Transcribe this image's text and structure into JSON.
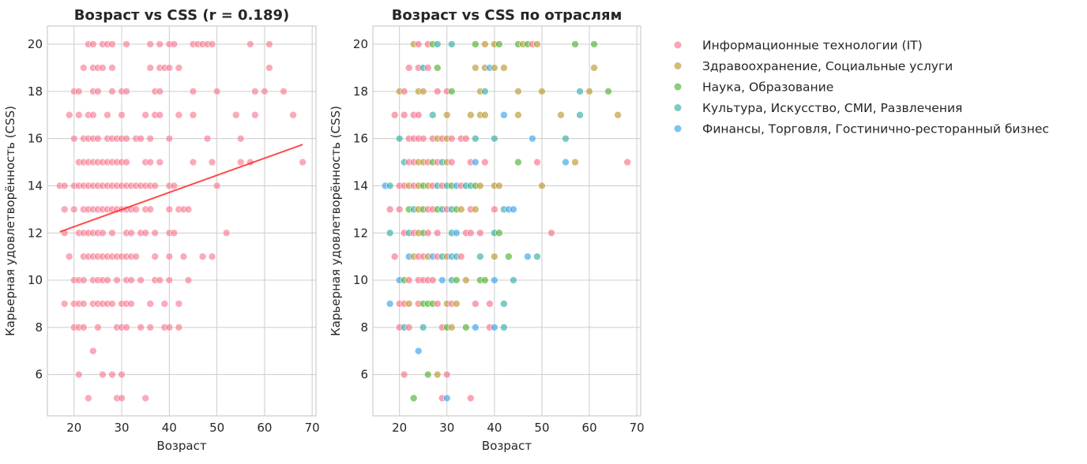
{
  "chart_data": [
    {
      "type": "scatter",
      "title": "Возраст vs CSS (r = 0.189)",
      "xlabel": "Возраст",
      "ylabel": "Карьерная удовлетворённость (CSS)",
      "xlim": [
        14.4,
        70.8
      ],
      "ylim": [
        4.25,
        20.77
      ],
      "xticks": [
        "20",
        "30",
        "40",
        "50",
        "60",
        "70"
      ],
      "yticks": [
        "6",
        "8",
        "10",
        "12",
        "14",
        "16",
        "18",
        "20"
      ],
      "grid": true,
      "point_color": "#f77189",
      "trendline": {
        "x": [
          17,
          68
        ],
        "y": [
          12.05,
          15.75
        ],
        "color": "#ff2a2a"
      }
    },
    {
      "type": "scatter",
      "title": "Возраст vs CSS по отраслям",
      "xlabel": "Возраст",
      "ylabel": "Карьерная удовлетворённость (CSS)",
      "xlim": [
        14.4,
        70.8
      ],
      "ylim": [
        4.25,
        20.77
      ],
      "xticks": [
        "20",
        "30",
        "40",
        "50",
        "60",
        "70"
      ],
      "yticks": [
        "6",
        "8",
        "10",
        "12",
        "14",
        "16",
        "18",
        "20"
      ],
      "grid": true,
      "legend_position": "outside-right",
      "series": [
        {
          "name": "Информационные технологии (IT)",
          "color": "#f77189"
        },
        {
          "name": "Здравоохранение, Социальные услуги",
          "color": "#bb9832"
        },
        {
          "name": "Наука, Образование",
          "color": "#50b131"
        },
        {
          "name": "Культура, Искусство, СМИ, Развлечения",
          "color": "#36ada4"
        },
        {
          "name": "Финансы, Торговля, Гостинично-ресторанный бизнес",
          "color": "#3ba3ec"
        }
      ]
    }
  ],
  "points_age_css_series": [
    [
      23,
      20,
      1
    ],
    [
      24,
      20,
      0
    ],
    [
      26,
      20,
      0
    ],
    [
      27,
      20,
      2
    ],
    [
      28,
      20,
      3
    ],
    [
      31,
      20,
      3
    ],
    [
      36,
      20,
      2
    ],
    [
      38,
      20,
      1
    ],
    [
      40,
      20,
      1
    ],
    [
      41,
      20,
      2
    ],
    [
      45,
      20,
      2
    ],
    [
      46,
      20,
      1
    ],
    [
      47,
      20,
      2
    ],
    [
      48,
      20,
      0
    ],
    [
      49,
      20,
      1
    ],
    [
      57,
      20,
      2
    ],
    [
      61,
      20,
      2
    ],
    [
      22,
      19,
      0
    ],
    [
      24,
      19,
      0
    ],
    [
      25,
      19,
      3
    ],
    [
      26,
      19,
      0
    ],
    [
      28,
      19,
      2
    ],
    [
      36,
      19,
      1
    ],
    [
      38,
      19,
      1
    ],
    [
      39,
      19,
      4
    ],
    [
      40,
      19,
      1
    ],
    [
      42,
      19,
      1
    ],
    [
      61,
      19,
      1
    ],
    [
      20,
      18,
      1
    ],
    [
      21,
      18,
      0
    ],
    [
      24,
      18,
      1
    ],
    [
      25,
      18,
      1
    ],
    [
      28,
      18,
      0
    ],
    [
      30,
      18,
      0
    ],
    [
      31,
      18,
      2
    ],
    [
      37,
      18,
      1
    ],
    [
      38,
      18,
      3
    ],
    [
      45,
      18,
      1
    ],
    [
      50,
      18,
      1
    ],
    [
      58,
      18,
      3
    ],
    [
      60,
      18,
      1
    ],
    [
      64,
      18,
      2
    ],
    [
      19,
      17,
      0
    ],
    [
      21,
      17,
      0
    ],
    [
      23,
      17,
      0
    ],
    [
      24,
      17,
      0
    ],
    [
      27,
      17,
      3
    ],
    [
      30,
      17,
      1
    ],
    [
      35,
      17,
      1
    ],
    [
      37,
      17,
      1
    ],
    [
      38,
      17,
      1
    ],
    [
      42,
      17,
      4
    ],
    [
      45,
      17,
      1
    ],
    [
      54,
      17,
      1
    ],
    [
      58,
      17,
      3
    ],
    [
      66,
      17,
      1
    ],
    [
      20,
      16,
      3
    ],
    [
      22,
      16,
      0
    ],
    [
      23,
      16,
      0
    ],
    [
      24,
      16,
      0
    ],
    [
      25,
      16,
      0
    ],
    [
      27,
      16,
      0
    ],
    [
      28,
      16,
      1
    ],
    [
      29,
      16,
      0
    ],
    [
      30,
      16,
      1
    ],
    [
      31,
      16,
      0
    ],
    [
      33,
      16,
      0
    ],
    [
      34,
      16,
      0
    ],
    [
      36,
      16,
      3
    ],
    [
      40,
      16,
      3
    ],
    [
      48,
      16,
      4
    ],
    [
      55,
      16,
      3
    ],
    [
      21,
      15,
      3
    ],
    [
      22,
      15,
      0
    ],
    [
      23,
      15,
      0
    ],
    [
      24,
      15,
      1
    ],
    [
      25,
      15,
      1
    ],
    [
      26,
      15,
      0
    ],
    [
      27,
      15,
      2
    ],
    [
      28,
      15,
      0
    ],
    [
      29,
      15,
      3
    ],
    [
      30,
      15,
      1
    ],
    [
      31,
      15,
      0
    ],
    [
      35,
      15,
      0
    ],
    [
      36,
      15,
      4
    ],
    [
      38,
      15,
      0
    ],
    [
      45,
      15,
      2
    ],
    [
      49,
      15,
      0
    ],
    [
      55,
      15,
      4
    ],
    [
      57,
      15,
      1
    ],
    [
      68,
      15,
      0
    ],
    [
      17,
      14,
      4
    ],
    [
      18,
      14,
      3
    ],
    [
      20,
      14,
      0
    ],
    [
      21,
      14,
      0
    ],
    [
      22,
      14,
      1
    ],
    [
      23,
      14,
      0
    ],
    [
      24,
      14,
      1
    ],
    [
      25,
      14,
      2
    ],
    [
      26,
      14,
      1
    ],
    [
      27,
      14,
      0
    ],
    [
      28,
      14,
      3
    ],
    [
      29,
      14,
      0
    ],
    [
      30,
      14,
      3
    ],
    [
      31,
      14,
      2
    ],
    [
      32,
      14,
      4
    ],
    [
      33,
      14,
      0
    ],
    [
      34,
      14,
      3
    ],
    [
      35,
      14,
      3
    ],
    [
      36,
      14,
      2
    ],
    [
      37,
      14,
      1
    ],
    [
      40,
      14,
      1
    ],
    [
      41,
      14,
      1
    ],
    [
      50,
      14,
      1
    ],
    [
      18,
      13,
      0
    ],
    [
      20,
      13,
      0
    ],
    [
      22,
      13,
      2
    ],
    [
      23,
      13,
      3
    ],
    [
      24,
      13,
      1
    ],
    [
      25,
      13,
      2
    ],
    [
      26,
      13,
      0
    ],
    [
      27,
      13,
      0
    ],
    [
      28,
      13,
      2
    ],
    [
      29,
      13,
      3
    ],
    [
      30,
      13,
      0
    ],
    [
      31,
      13,
      3
    ],
    [
      32,
      13,
      2
    ],
    [
      33,
      13,
      1
    ],
    [
      35,
      13,
      0
    ],
    [
      36,
      13,
      1
    ],
    [
      40,
      13,
      0
    ],
    [
      42,
      13,
      3
    ],
    [
      43,
      13,
      4
    ],
    [
      44,
      13,
      4
    ],
    [
      18,
      12,
      3
    ],
    [
      21,
      12,
      0
    ],
    [
      22,
      12,
      3
    ],
    [
      23,
      12,
      0
    ],
    [
      24,
      12,
      1
    ],
    [
      25,
      12,
      2
    ],
    [
      26,
      12,
      0
    ],
    [
      28,
      12,
      0
    ],
    [
      31,
      12,
      3
    ],
    [
      32,
      12,
      4
    ],
    [
      34,
      12,
      0
    ],
    [
      35,
      12,
      0
    ],
    [
      37,
      12,
      0
    ],
    [
      40,
      12,
      3
    ],
    [
      41,
      12,
      2
    ],
    [
      52,
      12,
      0
    ],
    [
      19,
      11,
      0
    ],
    [
      22,
      11,
      4
    ],
    [
      23,
      11,
      1
    ],
    [
      24,
      11,
      0
    ],
    [
      25,
      11,
      0
    ],
    [
      26,
      11,
      1
    ],
    [
      27,
      11,
      4
    ],
    [
      28,
      11,
      0
    ],
    [
      29,
      11,
      3
    ],
    [
      30,
      11,
      1
    ],
    [
      31,
      11,
      4
    ],
    [
      32,
      11,
      3
    ],
    [
      33,
      11,
      0
    ],
    [
      37,
      11,
      3
    ],
    [
      40,
      11,
      1
    ],
    [
      43,
      11,
      2
    ],
    [
      47,
      11,
      4
    ],
    [
      49,
      11,
      3
    ],
    [
      20,
      10,
      4
    ],
    [
      21,
      10,
      2
    ],
    [
      22,
      10,
      0
    ],
    [
      24,
      10,
      0
    ],
    [
      25,
      10,
      0
    ],
    [
      26,
      10,
      0
    ],
    [
      27,
      10,
      0
    ],
    [
      29,
      10,
      4
    ],
    [
      31,
      10,
      3
    ],
    [
      32,
      10,
      2
    ],
    [
      34,
      10,
      1
    ],
    [
      37,
      10,
      2
    ],
    [
      38,
      10,
      2
    ],
    [
      40,
      10,
      4
    ],
    [
      44,
      10,
      3
    ],
    [
      18,
      9,
      4
    ],
    [
      20,
      9,
      0
    ],
    [
      21,
      9,
      0
    ],
    [
      22,
      9,
      1
    ],
    [
      24,
      9,
      0
    ],
    [
      25,
      9,
      2
    ],
    [
      26,
      9,
      2
    ],
    [
      27,
      9,
      2
    ],
    [
      28,
      9,
      0
    ],
    [
      30,
      9,
      1
    ],
    [
      31,
      9,
      0
    ],
    [
      32,
      9,
      1
    ],
    [
      36,
      9,
      0
    ],
    [
      39,
      9,
      0
    ],
    [
      42,
      9,
      3
    ],
    [
      20,
      8,
      0
    ],
    [
      21,
      8,
      3
    ],
    [
      22,
      8,
      0
    ],
    [
      25,
      8,
      3
    ],
    [
      29,
      8,
      0
    ],
    [
      30,
      8,
      2
    ],
    [
      31,
      8,
      1
    ],
    [
      34,
      8,
      2
    ],
    [
      36,
      8,
      4
    ],
    [
      39,
      8,
      0
    ],
    [
      40,
      8,
      4
    ],
    [
      42,
      8,
      3
    ],
    [
      24,
      7,
      4
    ],
    [
      21,
      6,
      0
    ],
    [
      26,
      6,
      2
    ],
    [
      28,
      6,
      1
    ],
    [
      30,
      6,
      0
    ],
    [
      23,
      5,
      2
    ],
    [
      29,
      5,
      0
    ],
    [
      30,
      5,
      4
    ],
    [
      35,
      5,
      0
    ]
  ]
}
